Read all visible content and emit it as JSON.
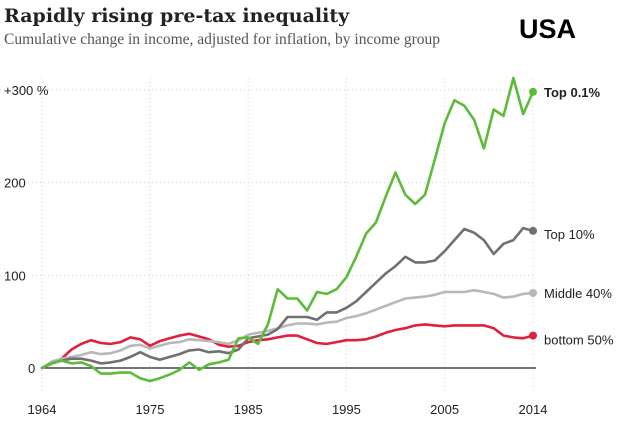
{
  "header": {
    "title": "Rapidly rising pre-tax inequality",
    "subtitle": "Cumulative change in income, adjusted for inflation, by income group",
    "badge": "USA"
  },
  "chart_data": {
    "type": "line",
    "title": "Rapidly rising pre-tax inequality",
    "subtitle": "Cumulative change in income, adjusted for inflation, by income group",
    "xlabel": "",
    "ylabel": "",
    "xlim": [
      1964,
      2014
    ],
    "ylim": [
      0,
      300
    ],
    "x_ticks": [
      {
        "value": 1964,
        "label": "1964"
      },
      {
        "value": 1975,
        "label": "1975"
      },
      {
        "value": 1985,
        "label": "1985"
      },
      {
        "value": 1995,
        "label": "1995"
      },
      {
        "value": 2005,
        "label": "2005"
      },
      {
        "value": 2014,
        "label": "2014"
      }
    ],
    "y_ticks": [
      {
        "value": 0,
        "label": "0"
      },
      {
        "value": 100,
        "label": "100"
      },
      {
        "value": 200,
        "label": "200"
      },
      {
        "value": 300,
        "label": "+300 %"
      }
    ],
    "grid": true,
    "legend": "inline-right",
    "x": [
      1964,
      1965,
      1966,
      1967,
      1968,
      1969,
      1970,
      1971,
      1972,
      1973,
      1974,
      1975,
      1976,
      1977,
      1978,
      1979,
      1980,
      1981,
      1982,
      1983,
      1984,
      1985,
      1986,
      1987,
      1988,
      1989,
      1990,
      1991,
      1992,
      1993,
      1994,
      1995,
      1996,
      1997,
      1998,
      1999,
      2000,
      2001,
      2002,
      2003,
      2004,
      2005,
      2006,
      2007,
      2008,
      2009,
      2010,
      2011,
      2012,
      2013,
      2014
    ],
    "series": [
      {
        "name": "Top 0.1%",
        "color": "#5dbb3a",
        "label_bold": true,
        "values": [
          0,
          5,
          8,
          5,
          6,
          2,
          -6,
          -6,
          -5,
          -5,
          -11,
          -14,
          -11,
          -7,
          -2,
          6,
          -2,
          4,
          6,
          9,
          32,
          33,
          26,
          47,
          85,
          75,
          75,
          62,
          82,
          80,
          85,
          98,
          120,
          145,
          157,
          185,
          211,
          187,
          177,
          187,
          225,
          264,
          289,
          283,
          268,
          237,
          279,
          272,
          313,
          274,
          298
        ]
      },
      {
        "name": "Top 10%",
        "color": "#707070",
        "label_bold": false,
        "values": [
          0,
          5,
          8,
          10,
          10,
          8,
          5,
          6,
          8,
          12,
          17,
          12,
          9,
          12,
          15,
          19,
          20,
          17,
          18,
          16,
          20,
          32,
          34,
          36,
          42,
          55,
          55,
          55,
          52,
          60,
          60,
          65,
          72,
          82,
          92,
          102,
          110,
          120,
          114,
          114,
          116,
          126,
          138,
          150,
          146,
          138,
          123,
          134,
          138,
          151,
          148
        ]
      },
      {
        "name": "Middle 40%",
        "color": "#b8b8b8",
        "label_bold": false,
        "values": [
          0,
          7,
          10,
          12,
          14,
          17,
          15,
          16,
          19,
          24,
          25,
          21,
          24,
          27,
          28,
          31,
          30,
          29,
          28,
          26,
          30,
          36,
          38,
          40,
          43,
          46,
          48,
          48,
          47,
          49,
          50,
          54,
          56,
          59,
          63,
          67,
          71,
          75,
          76,
          77,
          79,
          82,
          82,
          82,
          84,
          82,
          80,
          76,
          77,
          80,
          81
        ]
      },
      {
        "name": "bottom 50%",
        "color": "#e0203e",
        "label_bold": false,
        "values": [
          0,
          5,
          10,
          20,
          26,
          30,
          27,
          26,
          28,
          33,
          31,
          24,
          29,
          32,
          35,
          37,
          34,
          31,
          25,
          23,
          24,
          28,
          30,
          31,
          33,
          35,
          35,
          31,
          27,
          26,
          28,
          30,
          30,
          31,
          34,
          38,
          41,
          43,
          46,
          47,
          46,
          45,
          46,
          46,
          46,
          46,
          43,
          35,
          33,
          32,
          35
        ]
      }
    ]
  }
}
